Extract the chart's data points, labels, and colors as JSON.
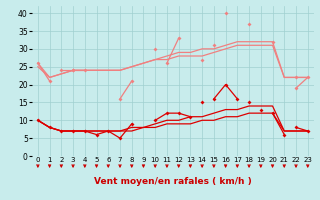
{
  "xlabel": "Vent moyen/en rafales ( km/h )",
  "x": [
    0,
    1,
    2,
    3,
    4,
    5,
    6,
    7,
    8,
    9,
    10,
    11,
    12,
    13,
    14,
    15,
    16,
    17,
    18,
    19,
    20,
    21,
    22,
    23
  ],
  "series": [
    {
      "name": "pink_scatter1",
      "color": "#f08080",
      "lw": 0.9,
      "marker": "D",
      "ms": 2.0,
      "values": [
        26,
        21,
        null,
        24,
        24,
        null,
        null,
        16,
        21,
        null,
        null,
        26,
        33,
        null,
        27,
        null,
        40,
        null,
        37,
        null,
        null,
        null,
        19,
        22
      ]
    },
    {
      "name": "pink_scatter2",
      "color": "#f08080",
      "lw": 0.9,
      "marker": "D",
      "ms": 2.0,
      "values": [
        null,
        null,
        24,
        24,
        null,
        null,
        null,
        null,
        null,
        null,
        30,
        null,
        null,
        null,
        null,
        31,
        null,
        null,
        null,
        null,
        32,
        null,
        22,
        null
      ]
    },
    {
      "name": "pink_trend1",
      "color": "#f08080",
      "lw": 0.9,
      "marker": null,
      "ms": 0,
      "values": [
        25,
        22,
        23,
        24,
        24,
        24,
        24,
        24,
        25,
        26,
        27,
        27,
        28,
        28,
        28,
        29,
        30,
        31,
        31,
        31,
        31,
        22,
        22,
        22
      ]
    },
    {
      "name": "pink_trend2",
      "color": "#f08080",
      "lw": 0.9,
      "marker": null,
      "ms": 0,
      "values": [
        26,
        22,
        23,
        24,
        24,
        24,
        24,
        24,
        25,
        26,
        27,
        28,
        29,
        29,
        30,
        30,
        31,
        32,
        32,
        32,
        32,
        22,
        22,
        22
      ]
    },
    {
      "name": "red_scatter1",
      "color": "#dd0000",
      "lw": 0.9,
      "marker": "D",
      "ms": 2.0,
      "values": [
        10,
        8,
        7,
        7,
        7,
        6,
        7,
        5,
        9,
        null,
        10,
        12,
        12,
        11,
        null,
        16,
        20,
        16,
        null,
        13,
        null,
        null,
        8,
        7
      ]
    },
    {
      "name": "red_scatter2",
      "color": "#dd0000",
      "lw": 0.9,
      "marker": "D",
      "ms": 2.0,
      "values": [
        null,
        null,
        null,
        null,
        null,
        null,
        null,
        null,
        null,
        null,
        null,
        null,
        null,
        null,
        15,
        null,
        null,
        null,
        15,
        null,
        12,
        6,
        null,
        null
      ]
    },
    {
      "name": "red_trend1",
      "color": "#dd0000",
      "lw": 0.9,
      "marker": null,
      "ms": 0,
      "values": [
        10,
        8,
        7,
        7,
        7,
        7,
        7,
        7,
        7,
        8,
        8,
        9,
        9,
        9,
        10,
        10,
        11,
        11,
        12,
        12,
        12,
        7,
        7,
        7
      ]
    },
    {
      "name": "red_trend2",
      "color": "#dd0000",
      "lw": 0.9,
      "marker": null,
      "ms": 0,
      "values": [
        10,
        8,
        7,
        7,
        7,
        7,
        7,
        7,
        8,
        8,
        9,
        10,
        10,
        11,
        11,
        12,
        13,
        13,
        14,
        14,
        14,
        7,
        7,
        7
      ]
    }
  ],
  "ylim": [
    0,
    42
  ],
  "yticks": [
    0,
    5,
    10,
    15,
    20,
    25,
    30,
    35,
    40
  ],
  "xlim": [
    -0.5,
    23.5
  ],
  "bg_color": "#c8ecec",
  "grid_color": "#a0d0d0",
  "arrow_color": "#cc0000",
  "xlabel_color": "#cc0000",
  "xlabel_fontsize": 6.5,
  "ytick_fontsize": 5.5,
  "xtick_fontsize": 5.0
}
